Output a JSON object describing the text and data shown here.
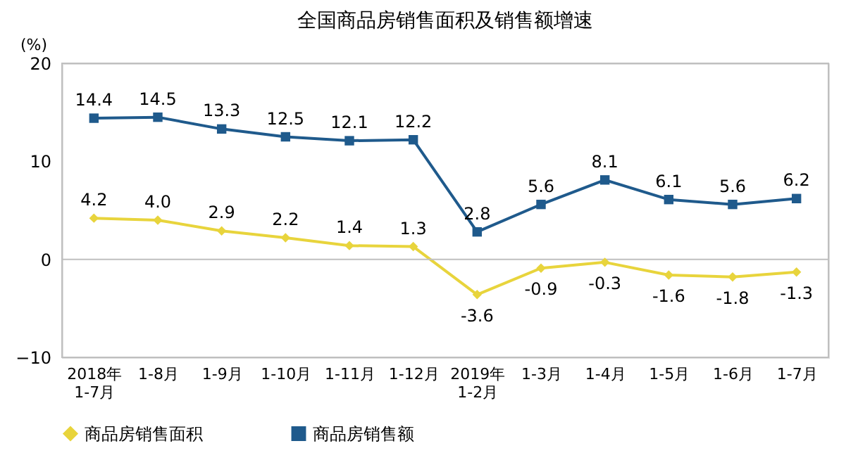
{
  "chart_data": {
    "type": "line",
    "title": "全国商品房销售面积及销售额增速",
    "ylabel": "(%)",
    "categories": [
      "2018年\n1-7月",
      "1-8月",
      "1-9月",
      "1-10月",
      "1-11月",
      "1-12月",
      "2019年\n1-2月",
      "1-3月",
      "1-4月",
      "1-5月",
      "1-6月",
      "1-7月"
    ],
    "series": [
      {
        "name": "商品房销售面积",
        "color": "#e8d43c",
        "marker": "diamond",
        "values": [
          4.2,
          4.0,
          2.9,
          2.2,
          1.4,
          1.3,
          -3.6,
          -0.9,
          -0.3,
          -1.6,
          -1.8,
          -1.3
        ],
        "value_labels": [
          "4.2",
          "4.0",
          "2.9",
          "2.2",
          "1.4",
          "1.3",
          "-3.6",
          "-0.9",
          "-0.3",
          "-1.6",
          "-1.8",
          "-1.3"
        ]
      },
      {
        "name": "商品房销售额",
        "color": "#1f5a8c",
        "marker": "square",
        "values": [
          14.4,
          14.5,
          13.3,
          12.5,
          12.1,
          12.2,
          2.8,
          5.6,
          8.1,
          6.1,
          5.6,
          6.2
        ],
        "value_labels": [
          "14.4",
          "14.5",
          "13.3",
          "12.5",
          "12.1",
          "12.2",
          "2.8",
          "5.6",
          "8.1",
          "6.1",
          "5.6",
          "6.2"
        ]
      }
    ],
    "ylim": [
      -10,
      20
    ],
    "yticks": [
      -10,
      0,
      10,
      20
    ],
    "ref_lines": [
      {
        "axis": "y",
        "value": 0,
        "color": "#bfbfbf"
      }
    ],
    "grid": false,
    "legend": "bottom",
    "line_style": "solid"
  }
}
